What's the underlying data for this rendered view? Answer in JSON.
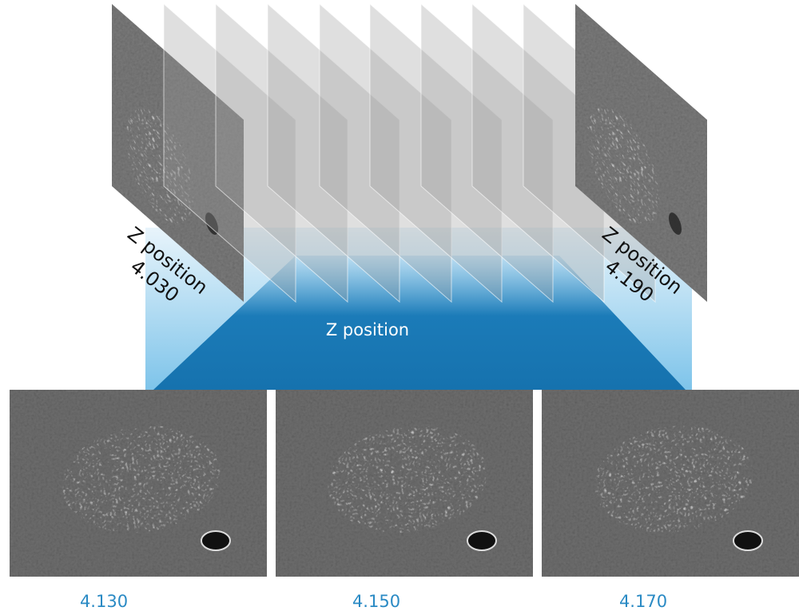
{
  "labels": {
    "left": {
      "title": "Z position",
      "value": "4.030"
    },
    "right": {
      "title": "Z position",
      "value": "4.190"
    },
    "center": "Z position",
    "bottom": [
      "4.130",
      "4.150",
      "4.170"
    ]
  }
}
